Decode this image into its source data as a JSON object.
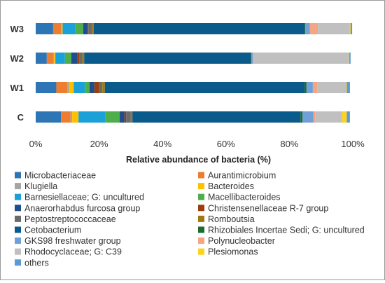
{
  "chart_data": {
    "type": "bar",
    "orientation": "horizontal",
    "stacked": true,
    "xlabel": "Relative abundance of bacteria (%)",
    "ylabel": "",
    "xlim": [
      0,
      100
    ],
    "x_ticks": [
      "0%",
      "20%",
      "40%",
      "60%",
      "80%",
      "100%"
    ],
    "grid": false,
    "legend_position": "bottom",
    "categories": [
      "W3",
      "W2",
      "W1",
      "C"
    ],
    "series": [
      {
        "name": "Microbacteriaceae",
        "color": "#2e75b6",
        "values": [
          5.5,
          3.5,
          6.5,
          8.0
        ]
      },
      {
        "name": "Aurantimicrobium",
        "color": "#ed7d31",
        "values": [
          2.5,
          2.0,
          3.5,
          3.0
        ]
      },
      {
        "name": "Klugiella",
        "color": "#a5a5a5",
        "values": [
          0.3,
          0.3,
          0.5,
          0.5
        ]
      },
      {
        "name": "Bacteroides",
        "color": "#ffc000",
        "values": [
          0.2,
          0.4,
          1.5,
          2.0
        ]
      },
      {
        "name": "Barnesiellaceae; G: uncultured",
        "color": "#1ba1d8",
        "values": [
          4.0,
          3.0,
          3.5,
          8.5
        ]
      },
      {
        "name": "Macellibacteroides",
        "color": "#4eae4c",
        "values": [
          2.5,
          2.0,
          1.5,
          4.5
        ]
      },
      {
        "name": "Anaerorhabdus furcosa group",
        "color": "#1f4e8c",
        "values": [
          1.3,
          2.0,
          1.5,
          1.5
        ]
      },
      {
        "name": "Christensenellaceae R-7 group",
        "color": "#9c3f0e",
        "values": [
          0.3,
          0.5,
          1.5,
          0.5
        ]
      },
      {
        "name": "Peptostreptococcaceae",
        "color": "#6b6b6b",
        "values": [
          1.2,
          1.0,
          1.0,
          1.5
        ]
      },
      {
        "name": "Romboutsia",
        "color": "#a07a10",
        "values": [
          0.5,
          0.6,
          0.8,
          0.5
        ]
      },
      {
        "name": "Cetobacterium",
        "color": "#0b5a8c",
        "values": [
          66.5,
          52.5,
          63.0,
          53.0
        ]
      },
      {
        "name": "Rhizobiales Incertae Sedi; G: uncultured",
        "color": "#1e6b2e",
        "values": [
          0.2,
          0.2,
          0.6,
          0.6
        ]
      },
      {
        "name": "GKS98 freshwater group",
        "color": "#6fa1d8",
        "values": [
          1.5,
          0.5,
          2.0,
          3.5
        ]
      },
      {
        "name": "Polynucleobacter",
        "color": "#f4a582",
        "values": [
          2.5,
          0.3,
          1.5,
          0.5
        ]
      },
      {
        "name": "Rhodocyclaceae; G: C39",
        "color": "#c0c0c0",
        "values": [
          10.0,
          30.0,
          9.0,
          8.5
        ]
      },
      {
        "name": "Plesiomonas",
        "color": "#ffd21f",
        "values": [
          0.3,
          0.1,
          0.2,
          1.5
        ]
      },
      {
        "name": "others",
        "color": "#5b9bd5",
        "values": [
          0.5,
          0.4,
          1.0,
          1.0
        ]
      }
    ]
  }
}
